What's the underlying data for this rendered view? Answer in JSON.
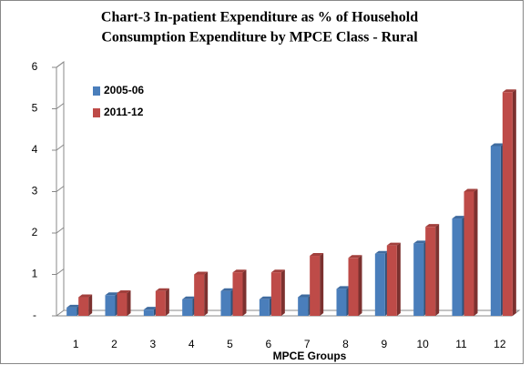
{
  "chart_data": {
    "type": "bar",
    "title": [
      "Chart-3  In-patient Expenditure as % of Household",
      "Consumption Expenditure by MPCE Class - Rural"
    ],
    "x_label": "MPCE Groups",
    "categories": [
      "1",
      "2",
      "3",
      "4",
      "5",
      "6",
      "7",
      "8",
      "9",
      "10",
      "11",
      "12"
    ],
    "series": [
      {
        "name": "2005-06",
        "color": "#4a7ebb",
        "values": [
          0.2,
          0.5,
          0.15,
          0.4,
          0.6,
          0.4,
          0.45,
          0.65,
          1.5,
          1.75,
          2.35,
          4.1
        ]
      },
      {
        "name": "2011-12",
        "color": "#be4b48",
        "values": [
          0.45,
          0.55,
          0.6,
          1.0,
          1.05,
          1.05,
          1.45,
          1.4,
          1.7,
          2.15,
          3.0,
          5.4
        ]
      }
    ],
    "ylim": [
      0,
      6
    ],
    "yticks": [
      {
        "value": 0,
        "label": "-"
      },
      1,
      2,
      3,
      4,
      5,
      6
    ],
    "legend": "upper left",
    "grid": false
  }
}
